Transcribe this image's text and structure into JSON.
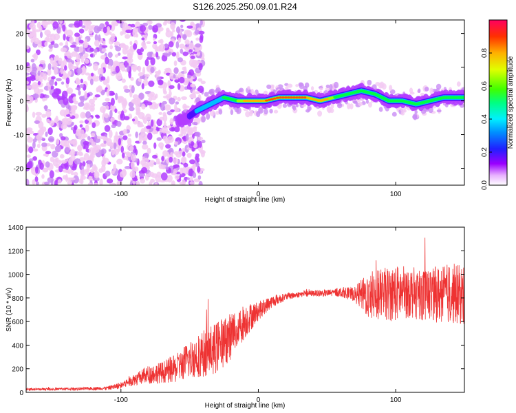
{
  "title": "S126.2025.250.09.01.R24",
  "chart_data": [
    {
      "type": "heatmap",
      "name": "spectrogram",
      "xlabel": "Height of straight line (km)",
      "ylabel": "Frequency (Hz)",
      "xlim": [
        -169,
        150
      ],
      "ylim": [
        -25,
        24
      ],
      "xticks": [
        -100,
        0,
        100
      ],
      "yticks": [
        -20,
        -10,
        0,
        10,
        20
      ],
      "colorbar": {
        "label": "Normalized spectral amplitude",
        "ticks": [
          0.0,
          0.2,
          0.4,
          0.6,
          0.8
        ],
        "range": [
          0,
          1
        ],
        "colors": [
          "#f2c9f2",
          "#b23cff",
          "#4b10ff",
          "#0040ff",
          "#00bfff",
          "#00ffd0",
          "#00ff40",
          "#a0ff00",
          "#ffff00",
          "#ffb000",
          "#ff5000",
          "#ff0040"
        ]
      },
      "ridge": [
        {
          "x": -55,
          "y": -6
        },
        {
          "x": -45,
          "y": -3
        },
        {
          "x": -35,
          "y": -1
        },
        {
          "x": -25,
          "y": 1
        },
        {
          "x": -15,
          "y": 0
        },
        {
          "x": -5,
          "y": 0
        },
        {
          "x": 5,
          "y": 0
        },
        {
          "x": 15,
          "y": 1
        },
        {
          "x": 25,
          "y": 1
        },
        {
          "x": 35,
          "y": 1
        },
        {
          "x": 45,
          "y": 0
        },
        {
          "x": 55,
          "y": 1
        },
        {
          "x": 65,
          "y": 2
        },
        {
          "x": 75,
          "y": 3
        },
        {
          "x": 85,
          "y": 2
        },
        {
          "x": 95,
          "y": 0
        },
        {
          "x": 105,
          "y": 0
        },
        {
          "x": 115,
          "y": -1
        },
        {
          "x": 125,
          "y": 0
        },
        {
          "x": 135,
          "y": 1
        },
        {
          "x": 145,
          "y": 1
        }
      ]
    },
    {
      "type": "line",
      "name": "snr",
      "xlabel": "Height of straight line (km)",
      "ylabel": "SNR (10 * v/v)",
      "xlim": [
        -169,
        150
      ],
      "ylim": [
        0,
        1400
      ],
      "xticks": [
        -100,
        0,
        100
      ],
      "yticks": [
        0,
        200,
        400,
        600,
        800,
        1000,
        1200,
        1400
      ],
      "color": "#ee3333",
      "series": [
        {
          "name": "SNR",
          "x": [
            -169,
            -150,
            -130,
            -110,
            -100,
            -90,
            -80,
            -70,
            -60,
            -50,
            -40,
            -30,
            -20,
            -10,
            0,
            10,
            20,
            30,
            40,
            50,
            60,
            70,
            80,
            90,
            100,
            110,
            120,
            130,
            140,
            150
          ],
          "values": [
            25,
            28,
            30,
            35,
            60,
            110,
            150,
            170,
            200,
            280,
            330,
            380,
            480,
            600,
            690,
            770,
            810,
            830,
            840,
            840,
            850,
            830,
            820,
            830,
            840,
            850,
            830,
            830,
            840,
            820
          ],
          "spread": [
            10,
            10,
            12,
            15,
            30,
            50,
            80,
            90,
            120,
            160,
            200,
            220,
            200,
            150,
            80,
            50,
            30,
            25,
            25,
            30,
            40,
            60,
            200,
            220,
            240,
            220,
            220,
            240,
            260,
            250
          ]
        }
      ]
    }
  ]
}
